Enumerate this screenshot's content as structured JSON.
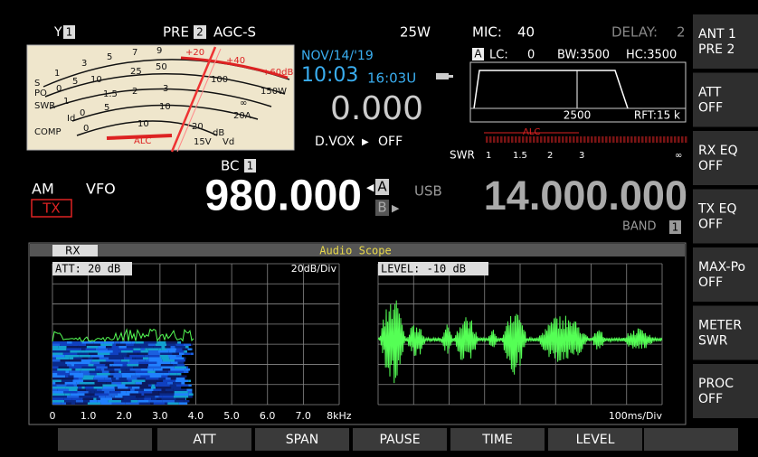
{
  "status_bar": {
    "antenna": "1",
    "preamp": "PRE",
    "preamp_number": "2",
    "agc": "AGC-S",
    "power": "25W",
    "mic_label": "MIC:",
    "mic_gain": "40",
    "delay_label": "DELAY:",
    "delay": "2"
  },
  "meter": {
    "s_label": "S",
    "s_scale": [
      "1",
      "3",
      "5",
      "7",
      "9",
      "+20",
      "+40",
      "+60dB"
    ],
    "po_label": "PO",
    "po_scale": [
      "0",
      "5",
      "10",
      "25",
      "50",
      "100",
      "150W"
    ],
    "swr_label": "SWR",
    "swr_scale": [
      "1",
      "1.5",
      "2",
      "3",
      "∞"
    ],
    "id_label": "Id",
    "id_scale": [
      "0",
      "5",
      "10",
      "20A"
    ],
    "comp_label": "COMP",
    "comp_scale": [
      "0",
      "10",
      "20",
      "dB"
    ],
    "alc_label": "ALC",
    "vd_scale": "15V",
    "vd_label": "Vd"
  },
  "clock": {
    "date": "NOV/14/'19",
    "local_time": "10:03",
    "utc_time": "16:03U"
  },
  "rit_offset": "0.000",
  "dvox": {
    "label": "D.VOX",
    "state": "OFF"
  },
  "filter": {
    "vfo": "A",
    "lc_label": "LC:",
    "lc": "0",
    "bw": "BW:3500",
    "hc": "HC:3500",
    "center": "2500",
    "rft": "RFT:15 k"
  },
  "bar_meter": {
    "alc_label": "ALC",
    "swr_label": "SWR",
    "swr_scale": [
      "1",
      "1.5",
      "2",
      "3",
      "∞"
    ]
  },
  "band_memory": {
    "label": "BC",
    "number": "1"
  },
  "mode": "AM",
  "vfo_mode": "VFO",
  "tx": "TX",
  "main_frequency": "980.000",
  "vfo_a": "A",
  "vfo_b": "B",
  "sub_mode": "USB",
  "sub_frequency": "14.000.000",
  "band": {
    "label": "BAND",
    "number": "1"
  },
  "audio_scope": {
    "tab": "RX",
    "title": "Audio Scope",
    "fft": {
      "att": "ATT: 20 dB",
      "scale": "20dB/Div",
      "x_labels": [
        "0",
        "1.0",
        "2.0",
        "3.0",
        "4.0",
        "5.0",
        "6.0",
        "7.0",
        "8kHz"
      ]
    },
    "oscilloscope": {
      "level": "LEVEL: -10 dB",
      "time": "100ms/Div"
    }
  },
  "side_menu": [
    {
      "line1": "ANT 1",
      "line2": "PRE 2"
    },
    {
      "line1": "ATT",
      "line2": "OFF"
    },
    {
      "line1": "RX EQ",
      "line2": "OFF"
    },
    {
      "line1": "TX EQ",
      "line2": "OFF"
    },
    {
      "line1": "MAX-Po",
      "line2": "OFF"
    },
    {
      "line1": "METER",
      "line2": "SWR"
    },
    {
      "line1": "PROC",
      "line2": "OFF"
    }
  ],
  "bottom_menu": [
    "ATT",
    "SPAN",
    "PAUSE",
    "TIME",
    "LEVEL"
  ]
}
